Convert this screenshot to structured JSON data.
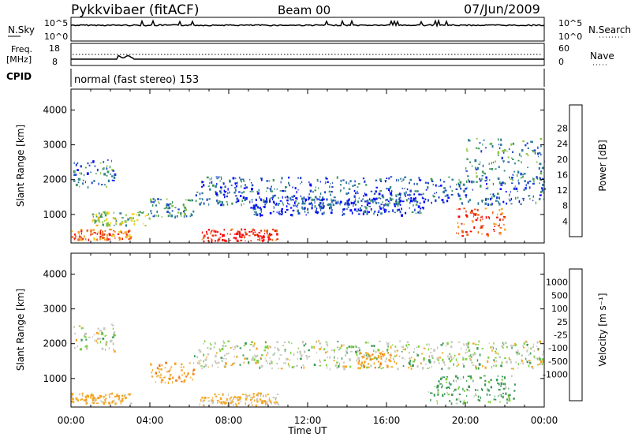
{
  "header": {
    "station": "Pykkvibaer (fitACF)",
    "beam": "Beam 00",
    "date": "07/Jun/2009"
  },
  "noise_panel": {
    "left_label": "N.Sky",
    "right_label": "N.Search",
    "left_ticks": [
      "10^5",
      "10^0"
    ],
    "right_ticks": [
      "10^5",
      "10^0"
    ]
  },
  "freq_panel": {
    "left_label_1": "Freq.",
    "left_label_2": "[MHz]",
    "right_label": "Nave",
    "left_ticks": [
      "18",
      "8"
    ],
    "right_ticks": [
      "60",
      "0"
    ]
  },
  "cpid_panel": {
    "label": "CPID",
    "text": "normal (fast stereo) 153"
  },
  "chart_data": [
    {
      "type": "heatmap",
      "quantity": "Power",
      "ylabel": "Slant Range [km]",
      "xlabel": "Time UT",
      "x_ticks": [
        "00:00",
        "04:00",
        "08:00",
        "12:00",
        "16:00",
        "20:00",
        "00:00"
      ],
      "y_ticks": [
        1000,
        2000,
        3000,
        4000
      ],
      "ylim": [
        180,
        4600
      ],
      "colorbar_label": "Power [dB]",
      "colorbar_ticks": [
        4,
        8,
        12,
        16,
        20,
        24,
        28
      ],
      "colorbar_colors": [
        "#0000ff",
        "#1f46c8",
        "#2e7d9a",
        "#3f9a5a",
        "#8bc43e",
        "#f6d523",
        "#f5a623",
        "#f06a1b",
        "#e62a14",
        "#ff0000"
      ],
      "regions": [
        {
          "t": [
            0.1,
            2.2
          ],
          "r": [
            1800,
            2600
          ],
          "level": 0.25
        },
        {
          "t": [
            1.0,
            4.0
          ],
          "r": [
            700,
            1100
          ],
          "level": 0.45
        },
        {
          "t": [
            4.0,
            6.2
          ],
          "r": [
            950,
            1500
          ],
          "level": 0.3
        },
        {
          "t": [
            0.0,
            3.0
          ],
          "r": [
            300,
            600
          ],
          "level": 0.75
        },
        {
          "t": [
            6.5,
            10.5
          ],
          "r": [
            250,
            600
          ],
          "level": 0.9
        },
        {
          "t": [
            6.2,
            24.0
          ],
          "r": [
            1300,
            2100
          ],
          "level": 0.2
        },
        {
          "t": [
            9.0,
            18.0
          ],
          "r": [
            1000,
            1500
          ],
          "level": 0.15
        },
        {
          "t": [
            19.5,
            22.0
          ],
          "r": [
            400,
            1200
          ],
          "level": 0.8
        },
        {
          "t": [
            20.0,
            24.0
          ],
          "r": [
            2000,
            3200
          ],
          "level": 0.3
        }
      ]
    },
    {
      "type": "heatmap",
      "quantity": "Velocity",
      "ylabel": "Slant Range [km]",
      "xlabel": "Time UT",
      "x_ticks": [
        "00:00",
        "04:00",
        "08:00",
        "12:00",
        "16:00",
        "20:00",
        "00:00"
      ],
      "y_ticks": [
        1000,
        2000,
        3000,
        4000
      ],
      "ylim": [
        180,
        4600
      ],
      "colorbar_label": "Velocity [m s⁻¹]",
      "colorbar_ticks": [
        1000,
        500,
        100,
        25,
        -25,
        -100,
        -500,
        -1000
      ],
      "colorbar_colors": [
        "#1a3fd0",
        "#2f7fb8",
        "#3f9a5a",
        "#7fd040",
        "#c8c8c0",
        "#c8c8c0",
        "#f5a623",
        "#f07a1b",
        "#e64a14",
        "#ff0000"
      ],
      "regions": [
        {
          "t": [
            0.1,
            2.2
          ],
          "r": [
            1800,
            2600
          ],
          "value": 0
        },
        {
          "t": [
            0.0,
            3.0
          ],
          "r": [
            300,
            600
          ],
          "value": -200
        },
        {
          "t": [
            4.0,
            6.2
          ],
          "r": [
            900,
            1500
          ],
          "value": -400
        },
        {
          "t": [
            6.5,
            10.5
          ],
          "r": [
            250,
            600
          ],
          "value": -150
        },
        {
          "t": [
            6.2,
            24.0
          ],
          "r": [
            1300,
            2100
          ],
          "value": 0
        },
        {
          "t": [
            14.5,
            16.5
          ],
          "r": [
            1300,
            1800
          ],
          "value": -400
        },
        {
          "t": [
            18.0,
            22.5
          ],
          "r": [
            300,
            1100
          ],
          "value": 150
        }
      ]
    }
  ]
}
